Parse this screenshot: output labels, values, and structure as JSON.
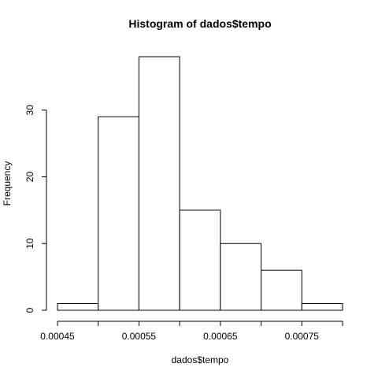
{
  "chart_data": {
    "type": "bar",
    "title": "Histogram of dados$tempo",
    "xlabel": "dados$tempo",
    "ylabel": "Frequency",
    "bins": [
      {
        "x0": 0.00045,
        "x1": 0.0005,
        "count": 1
      },
      {
        "x0": 0.0005,
        "x1": 0.00055,
        "count": 29
      },
      {
        "x0": 0.00055,
        "x1": 0.0006,
        "count": 38
      },
      {
        "x0": 0.0006,
        "x1": 0.00065,
        "count": 15
      },
      {
        "x0": 0.00065,
        "x1": 0.0007,
        "count": 10
      },
      {
        "x0": 0.0007,
        "x1": 0.00075,
        "count": 6
      },
      {
        "x0": 0.00075,
        "x1": 0.0008,
        "count": 1
      }
    ],
    "xlim": [
      0.00045,
      0.0008
    ],
    "ylim": [
      0,
      38
    ],
    "x_tick_values": [
      0.00045,
      0.0005,
      0.00055,
      0.0006,
      0.00065,
      0.0007,
      0.00075,
      0.0008
    ],
    "x_tick_labels": [
      "0.00045",
      "",
      "0.00055",
      "",
      "0.00065",
      "",
      "0.00075",
      ""
    ],
    "y_tick_values": [
      0,
      10,
      20,
      30
    ],
    "y_tick_labels": [
      "0",
      "10",
      "20",
      "30"
    ],
    "grid": false,
    "legend": "none"
  }
}
